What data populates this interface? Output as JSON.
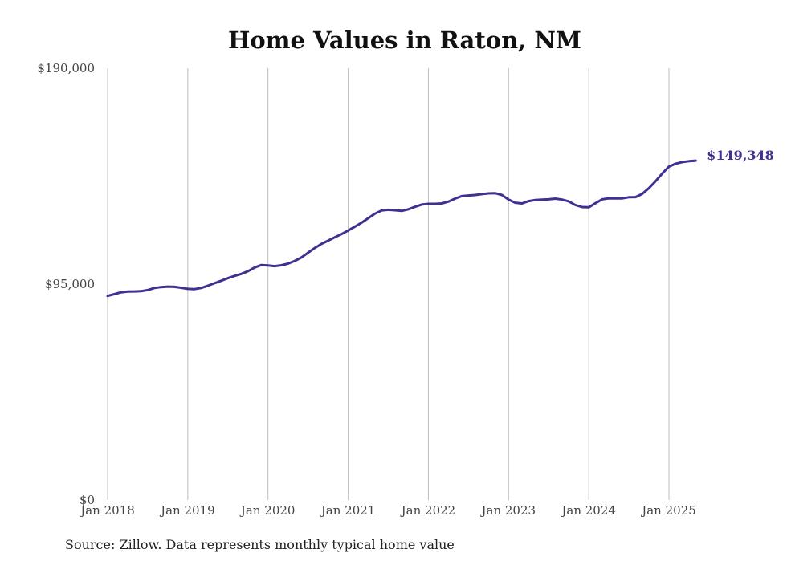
{
  "chart_data": {
    "type": "line",
    "title": "Home Values in Raton, NM",
    "xlabel": "",
    "ylabel": "",
    "x_ticks": [
      "Jan 2018",
      "Jan 2019",
      "Jan 2020",
      "Jan 2021",
      "Jan 2022",
      "Jan 2023",
      "Jan 2024",
      "Jan 2025"
    ],
    "y_ticks": [
      {
        "value": 0,
        "label": "$0"
      },
      {
        "value": 95000,
        "label": "$95,000"
      },
      {
        "value": 190000,
        "label": "$190,000"
      }
    ],
    "ylim": [
      0,
      190000
    ],
    "grid": "vertical",
    "series": [
      {
        "color": "#3d3191",
        "end_label": "$149,348",
        "points": [
          [
            "2018-01",
            89800
          ],
          [
            "2018-02",
            90600
          ],
          [
            "2018-03",
            91400
          ],
          [
            "2018-04",
            91700
          ],
          [
            "2018-05",
            91800
          ],
          [
            "2018-06",
            91900
          ],
          [
            "2018-07",
            92400
          ],
          [
            "2018-08",
            93300
          ],
          [
            "2018-09",
            93700
          ],
          [
            "2018-10",
            93900
          ],
          [
            "2018-11",
            93800
          ],
          [
            "2018-12",
            93400
          ],
          [
            "2019-01",
            92900
          ],
          [
            "2019-02",
            92800
          ],
          [
            "2019-03",
            93300
          ],
          [
            "2019-04",
            94300
          ],
          [
            "2019-05",
            95400
          ],
          [
            "2019-06",
            96500
          ],
          [
            "2019-07",
            97600
          ],
          [
            "2019-08",
            98600
          ],
          [
            "2019-09",
            99500
          ],
          [
            "2019-10",
            100700
          ],
          [
            "2019-11",
            102300
          ],
          [
            "2019-12",
            103400
          ],
          [
            "2020-01",
            103200
          ],
          [
            "2020-02",
            102900
          ],
          [
            "2020-03",
            103300
          ],
          [
            "2020-04",
            104000
          ],
          [
            "2020-05",
            105200
          ],
          [
            "2020-06",
            106700
          ],
          [
            "2020-07",
            108800
          ],
          [
            "2020-08",
            110900
          ],
          [
            "2020-09",
            112700
          ],
          [
            "2020-10",
            114100
          ],
          [
            "2020-11",
            115600
          ],
          [
            "2020-12",
            117000
          ],
          [
            "2021-01",
            118600
          ],
          [
            "2021-02",
            120300
          ],
          [
            "2021-03",
            122000
          ],
          [
            "2021-04",
            124000
          ],
          [
            "2021-05",
            126000
          ],
          [
            "2021-06",
            127400
          ],
          [
            "2021-07",
            127700
          ],
          [
            "2021-08",
            127500
          ],
          [
            "2021-09",
            127200
          ],
          [
            "2021-10",
            127900
          ],
          [
            "2021-11",
            129000
          ],
          [
            "2021-12",
            130000
          ],
          [
            "2022-01",
            130300
          ],
          [
            "2022-02",
            130300
          ],
          [
            "2022-03",
            130500
          ],
          [
            "2022-04",
            131300
          ],
          [
            "2022-05",
            132600
          ],
          [
            "2022-06",
            133700
          ],
          [
            "2022-07",
            134000
          ],
          [
            "2022-08",
            134200
          ],
          [
            "2022-09",
            134600
          ],
          [
            "2022-10",
            134900
          ],
          [
            "2022-11",
            135000
          ],
          [
            "2022-12",
            134200
          ],
          [
            "2023-01",
            132200
          ],
          [
            "2023-02",
            130800
          ],
          [
            "2023-03",
            130500
          ],
          [
            "2023-04",
            131500
          ],
          [
            "2023-05",
            132000
          ],
          [
            "2023-06",
            132200
          ],
          [
            "2023-07",
            132300
          ],
          [
            "2023-08",
            132600
          ],
          [
            "2023-09",
            132200
          ],
          [
            "2023-10",
            131400
          ],
          [
            "2023-11",
            129800
          ],
          [
            "2023-12",
            128900
          ],
          [
            "2024-01",
            128800
          ],
          [
            "2024-02",
            130600
          ],
          [
            "2024-03",
            132300
          ],
          [
            "2024-04",
            132700
          ],
          [
            "2024-05",
            132700
          ],
          [
            "2024-06",
            132700
          ],
          [
            "2024-07",
            133200
          ],
          [
            "2024-08",
            133300
          ],
          [
            "2024-09",
            134700
          ],
          [
            "2024-10",
            137200
          ],
          [
            "2024-11",
            140300
          ],
          [
            "2024-12",
            143700
          ],
          [
            "2025-01",
            146700
          ],
          [
            "2025-02",
            148000
          ],
          [
            "2025-03",
            148700
          ],
          [
            "2025-04",
            149100
          ],
          [
            "2025-05",
            149348
          ]
        ]
      }
    ]
  },
  "source_note": "Source: Zillow. Data represents monthly typical home value"
}
